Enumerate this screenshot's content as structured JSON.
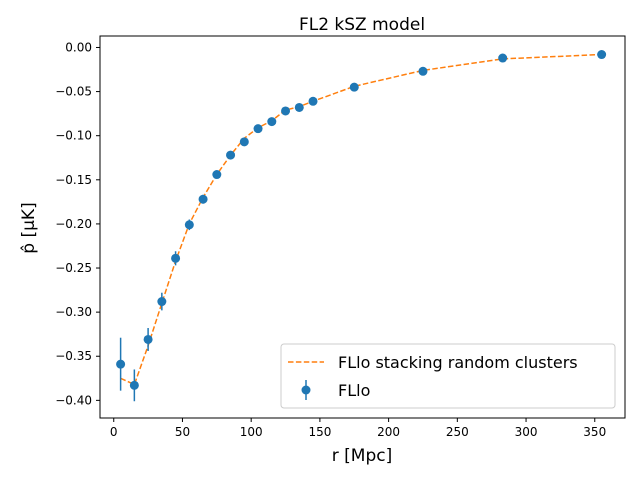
{
  "chart_data": {
    "type": "scatter",
    "title": "FL2 kSZ model",
    "xlabel": "r [Mpc]",
    "ylabel": "p̂ [μK]",
    "xlim": [
      -10,
      372
    ],
    "ylim": [
      -0.42,
      0.013
    ],
    "xticks": [
      0,
      50,
      100,
      150,
      200,
      250,
      300,
      350
    ],
    "yticks": [
      0.0,
      -0.05,
      -0.1,
      -0.15,
      -0.2,
      -0.25,
      -0.3,
      -0.35,
      -0.4
    ],
    "xtick_labels": [
      "0",
      "50",
      "100",
      "150",
      "200",
      "250",
      "300",
      "350"
    ],
    "ytick_labels": [
      "0.00",
      "−0.05",
      "−0.10",
      "−0.15",
      "−0.20",
      "−0.25",
      "−0.30",
      "−0.35",
      "−0.40"
    ],
    "grid": false,
    "legend_position": "bottom-right",
    "series": [
      {
        "name": "FLlo stacking random clusters",
        "kind": "line",
        "style": "dashed",
        "color": "#ff7f0e",
        "x": [
          5,
          15,
          25,
          35,
          45,
          55,
          65,
          75,
          85,
          95,
          105,
          115,
          125,
          135,
          145,
          175,
          225,
          283,
          355
        ],
        "y": [
          -0.375,
          -0.382,
          -0.338,
          -0.29,
          -0.242,
          -0.2,
          -0.17,
          -0.144,
          -0.122,
          -0.103,
          -0.091,
          -0.083,
          -0.071,
          -0.067,
          -0.061,
          -0.044,
          -0.026,
          -0.013,
          -0.008
        ]
      },
      {
        "name": "FLlo",
        "kind": "errorbar",
        "color": "#1f77b4",
        "x": [
          5,
          15,
          25,
          35,
          45,
          55,
          65,
          75,
          85,
          95,
          105,
          115,
          125,
          135,
          145,
          175,
          225,
          283,
          355
        ],
        "y": [
          -0.359,
          -0.383,
          -0.331,
          -0.288,
          -0.239,
          -0.201,
          -0.172,
          -0.144,
          -0.122,
          -0.107,
          -0.092,
          -0.084,
          -0.072,
          -0.068,
          -0.061,
          -0.045,
          -0.027,
          -0.012,
          -0.008
        ],
        "yerr": [
          0.03,
          0.018,
          0.013,
          0.01,
          0.008,
          0.006,
          0.005,
          0.004,
          0.004,
          0.003,
          0.003,
          0.003,
          0.003,
          0.002,
          0.002,
          0.002,
          0.002,
          0.002,
          0.002
        ]
      }
    ]
  }
}
